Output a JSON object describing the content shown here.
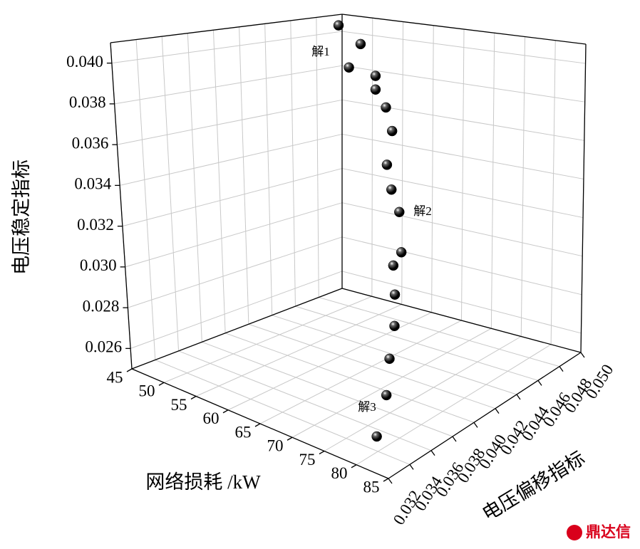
{
  "chart_data": {
    "type": "scatter3d",
    "x_label": "网络损耗 /kW",
    "y_label": "电压偏移指标",
    "z_label": "电压稳定指标",
    "xlim": [
      45,
      85
    ],
    "xticks": [
      45,
      50,
      55,
      60,
      65,
      70,
      75,
      80,
      85
    ],
    "ylim": [
      0.032,
      0.05
    ],
    "yticks": [
      0.032,
      0.034,
      0.036,
      0.038,
      {
        "value": 0.04,
        "label": "0.040"
      },
      0.042,
      0.044,
      0.046,
      0.048,
      {
        "value": 0.05,
        "label": "0.050"
      }
    ],
    "zlim": [
      0.025,
      0.041
    ],
    "zticks": [
      0.026,
      0.028,
      {
        "value": 0.03,
        "label": "0.030"
      },
      0.032,
      0.034,
      0.036,
      0.038,
      {
        "value": 0.04,
        "label": "0.040"
      }
    ],
    "grid": true,
    "color": "#000000",
    "x": [
      46.3,
      51.7,
      51.6,
      57.6,
      59.3,
      62.6,
      65.2,
      66.0,
      68.3,
      71.1,
      73.0,
      73.3,
      75.1,
      76.6,
      77.4,
      78.5,
      78.6
    ],
    "y": [
      0.0491,
      0.0482,
      0.0473,
      0.0464,
      0.0455,
      0.0446,
      0.0437,
      0.0428,
      0.0419,
      0.041,
      0.0401,
      0.0392,
      0.0383,
      0.0374,
      0.0365,
      0.0356,
      0.0347
    ],
    "z": [
      0.0405,
      0.0398,
      0.0386,
      0.0386,
      0.0381,
      0.0375,
      0.0366,
      0.0351,
      0.0342,
      0.0335,
      0.0319,
      0.0315,
      0.0305,
      0.0294,
      0.0282,
      0.0269,
      0.0253
    ],
    "annotations": [
      "解1",
      "解2",
      "解3"
    ],
    "watermark": "鼎达信"
  }
}
